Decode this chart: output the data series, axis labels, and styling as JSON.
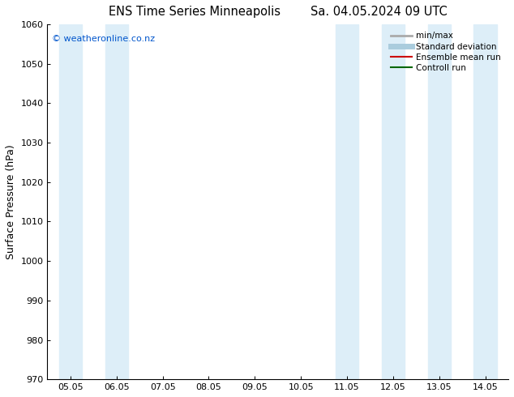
{
  "title_left": "ENS Time Series Minneapolis",
  "title_right": "Sa. 04.05.2024 09 UTC",
  "ylabel": "Surface Pressure (hPa)",
  "ylim": [
    970,
    1060
  ],
  "yticks": [
    970,
    980,
    990,
    1000,
    1010,
    1020,
    1030,
    1040,
    1050,
    1060
  ],
  "x_labels": [
    "05.05",
    "06.05",
    "07.05",
    "08.05",
    "09.05",
    "10.05",
    "11.05",
    "12.05",
    "13.05",
    "14.05"
  ],
  "x_positions": [
    0,
    1,
    2,
    3,
    4,
    5,
    6,
    7,
    8,
    9
  ],
  "band_color": "#ddeef8",
  "watermark": "© weatheronline.co.nz",
  "watermark_color": "#0055cc",
  "legend_labels": [
    "min/max",
    "Standard deviation",
    "Ensemble mean run",
    "Controll run"
  ],
  "bg_color": "#ffffff",
  "title_fontsize": 10.5,
  "axis_label_fontsize": 9,
  "tick_fontsize": 8
}
